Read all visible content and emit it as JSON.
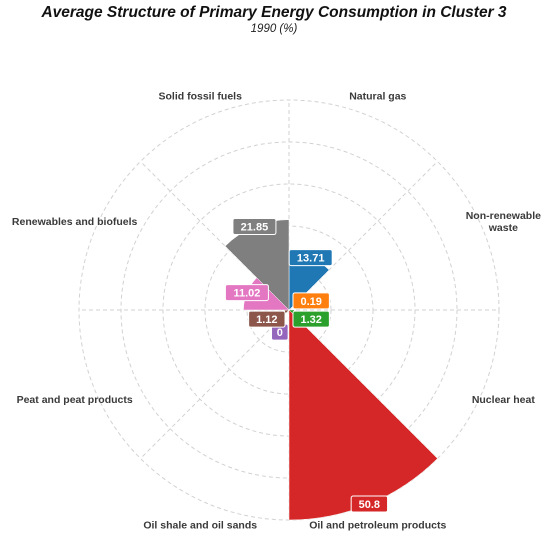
{
  "chart_data": {
    "type": "polar-area",
    "title": "Average Structure of Primary Energy Consumption in Cluster 3",
    "subtitle": "1990 (%)",
    "categories": [
      "Natural gas",
      "Non-renewable waste",
      "Nuclear heat",
      "Oil and petroleum products",
      "Oil shale and oil sands",
      "Peat and peat products",
      "Renewables and biofuels",
      "Solid fossil fuels"
    ],
    "values": [
      13.71,
      0.19,
      1.32,
      50.8,
      0,
      1.12,
      11.02,
      21.85
    ],
    "value_labels": [
      "13.71",
      "0.19",
      "1.32",
      "50.8",
      "0",
      "1.12",
      "11.02",
      "21.85"
    ],
    "colors": [
      "#1f77b4",
      "#ff7f0e",
      "#2ca02c",
      "#d62728",
      "#9467bd",
      "#8c564b",
      "#e377c2",
      "#7f7f7f"
    ],
    "grid": true,
    "legend": "none"
  }
}
